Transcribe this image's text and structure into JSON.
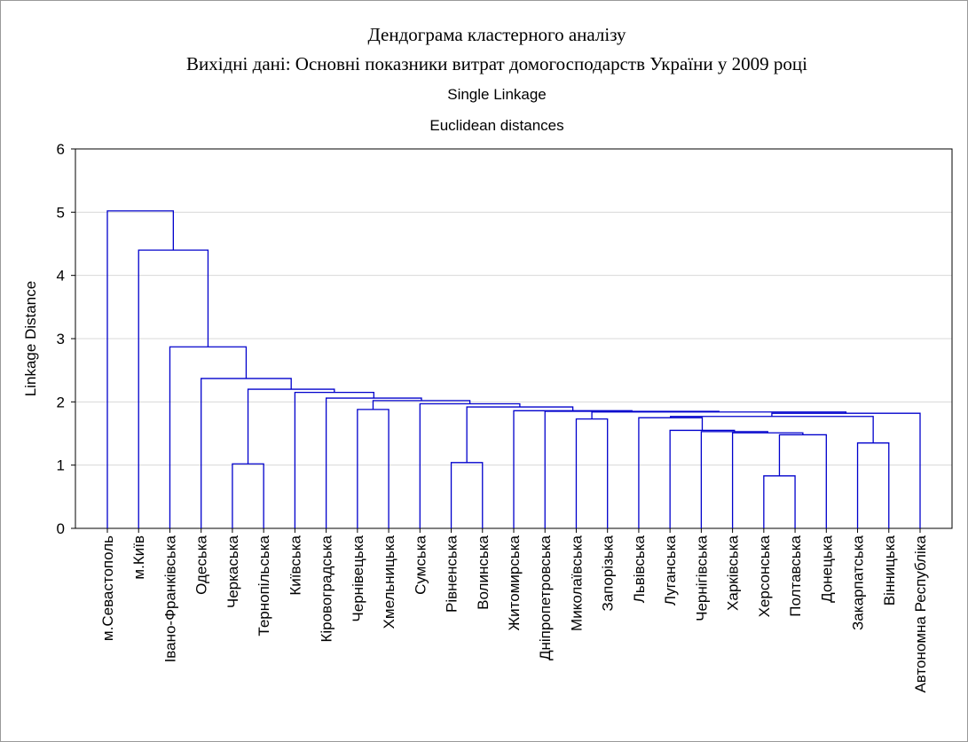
{
  "chart_data": {
    "type": "dendrogram",
    "title": "Дендограма кластерного аналізу",
    "subtitle": "Вихідні дані: Основні показники витрат домогосподарств України у 2009 році",
    "method": "Single Linkage",
    "distance": "Euclidean distances",
    "y_label": "Linkage Distance",
    "color": "#0000cc",
    "grid": true,
    "ylim": [
      0,
      6
    ],
    "yticks": [
      0,
      1,
      2,
      3,
      4,
      5,
      6
    ],
    "leaves": [
      "м.Севастополь",
      "м.Київ",
      "Івано-Франківська",
      "Одеська",
      "Черкаська",
      "Тернопільська",
      "Київська",
      "Кіровоградська",
      "Чернівецька",
      "Хмельницька",
      "Сумська",
      "Рівненська",
      "Волинська",
      "Житомирська",
      "Дніпропетровська",
      "Миколаївська",
      "Запорізька",
      "Львівська",
      "Луганська",
      "Чернігівська",
      "Харківська",
      "Херсонська",
      "Полтавська",
      "Донецька",
      "Закарпатська",
      "Вінницька",
      "Автономна Республіка"
    ],
    "merges": [
      {
        "left": 21,
        "right": 22,
        "height": 0.83
      },
      {
        "left": 4,
        "right": 5,
        "height": 1.02
      },
      {
        "left": 11,
        "right": 12,
        "height": 1.04
      },
      {
        "left": 24,
        "right": 25,
        "height": 1.35
      },
      {
        "left": 27,
        "right": 23,
        "height": 1.48
      },
      {
        "left": 20,
        "right": 31,
        "height": 1.51
      },
      {
        "left": 19,
        "right": 32,
        "height": 1.53
      },
      {
        "left": 18,
        "right": 33,
        "height": 1.55
      },
      {
        "left": 15,
        "right": 16,
        "height": 1.73
      },
      {
        "left": 17,
        "right": 34,
        "height": 1.75
      },
      {
        "left": 36,
        "right": 30,
        "height": 1.77
      },
      {
        "left": 37,
        "right": 26,
        "height": 1.82
      },
      {
        "left": 35,
        "right": 38,
        "height": 1.84
      },
      {
        "left": 14,
        "right": 39,
        "height": 1.85
      },
      {
        "left": 13,
        "right": 40,
        "height": 1.86
      },
      {
        "left": 8,
        "right": 9,
        "height": 1.88
      },
      {
        "left": 29,
        "right": 41,
        "height": 1.92
      },
      {
        "left": 10,
        "right": 43,
        "height": 1.97
      },
      {
        "left": 42,
        "right": 44,
        "height": 2.02
      },
      {
        "left": 7,
        "right": 45,
        "height": 2.06
      },
      {
        "left": 6,
        "right": 46,
        "height": 2.15
      },
      {
        "left": 28,
        "right": 47,
        "height": 2.2
      },
      {
        "left": 3,
        "right": 48,
        "height": 2.37
      },
      {
        "left": 2,
        "right": 49,
        "height": 2.87
      },
      {
        "left": 1,
        "right": 50,
        "height": 4.4
      },
      {
        "left": 0,
        "right": 51,
        "height": 5.02
      }
    ]
  }
}
